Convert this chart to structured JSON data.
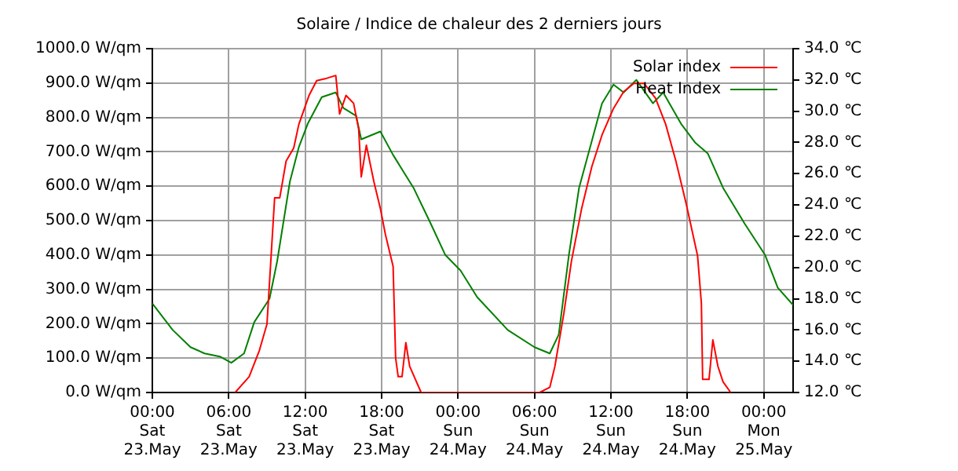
{
  "chart_data": {
    "type": "line",
    "title": "Solaire / Indice de chaleur des 2 derniers jours",
    "xlim": [
      "--05-23T00:00",
      "--05-25T02:18"
    ],
    "xticks": [
      {
        "value": "--05-23T00:00",
        "label": "00:00\nSat\n23.May"
      },
      {
        "value": "--05-23T06:00",
        "label": "06:00\nSat\n23.May"
      },
      {
        "value": "--05-23T12:00",
        "label": "12:00\nSat\n23.May"
      },
      {
        "value": "--05-23T18:00",
        "label": "18:00\nSat\n23.May"
      },
      {
        "value": "--05-24T00:00",
        "label": "00:00\nSun\n24.May"
      },
      {
        "value": "--05-24T06:00",
        "label": "06:00\nSun\n24.May"
      },
      {
        "value": "--05-24T12:00",
        "label": "12:00\nSun\n24.May"
      },
      {
        "value": "--05-24T18:00",
        "label": "18:00\nSun\n24.May"
      },
      {
        "value": "--05-25T00:00",
        "label": "00:00\nMon\n25.May"
      }
    ],
    "ylim": [
      0,
      1000
    ],
    "yticks": [
      {
        "value": 0,
        "label": "0.0 W/qm"
      },
      {
        "value": 100,
        "label": "100.0 W/qm"
      },
      {
        "value": 200,
        "label": "200.0 W/qm"
      },
      {
        "value": 300,
        "label": "300.0 W/qm"
      },
      {
        "value": 400,
        "label": "400.0 W/qm"
      },
      {
        "value": 500,
        "label": "500.0 W/qm"
      },
      {
        "value": 600,
        "label": "600.0 W/qm"
      },
      {
        "value": 700,
        "label": "700.0 W/qm"
      },
      {
        "value": 800,
        "label": "800.0 W/qm"
      },
      {
        "value": 900,
        "label": "900.0 W/qm"
      },
      {
        "value": 1000,
        "label": "1000.0 W/qm"
      }
    ],
    "y2lim": [
      12,
      34
    ],
    "y2ticks": [
      {
        "value": 12,
        "label": "12.0 ℃"
      },
      {
        "value": 14,
        "label": "14.0 ℃"
      },
      {
        "value": 16,
        "label": "16.0 ℃"
      },
      {
        "value": 18,
        "label": "18.0 ℃"
      },
      {
        "value": 20,
        "label": "20.0 ℃"
      },
      {
        "value": 22,
        "label": "22.0 ℃"
      },
      {
        "value": 24,
        "label": "24.0 ℃"
      },
      {
        "value": 26,
        "label": "26.0 ℃"
      },
      {
        "value": 28,
        "label": "28.0 ℃"
      },
      {
        "value": 30,
        "label": "30.0 ℃"
      },
      {
        "value": 32,
        "label": "32.0 ℃"
      },
      {
        "value": 34,
        "label": "34.0 ℃"
      }
    ],
    "grid": true,
    "legend": "top right",
    "marker": "none",
    "line_style": "solid",
    "series": [
      {
        "name": "Solar index",
        "color": "#ff0000",
        "x": [
          "--05-23T06:30",
          "--05-23T07:36",
          "--05-23T08:24",
          "--05-23T09:00",
          "--05-23T09:18",
          "--05-23T09:36",
          "--05-23T10:00",
          "--05-23T10:30",
          "--05-23T11:06",
          "--05-23T11:30",
          "--05-23T12:18",
          "--05-23T12:54",
          "--05-23T13:42",
          "--05-23T14:24",
          "--05-23T14:42",
          "--05-23T15:12",
          "--05-23T15:48",
          "--05-23T16:12",
          "--05-23T16:24",
          "--05-23T16:48",
          "--05-23T17:24",
          "--05-23T17:54",
          "--05-23T18:18",
          "--05-23T18:54",
          "--05-23T19:06",
          "--05-23T19:18",
          "--05-23T19:36",
          "--05-23T19:54",
          "--05-23T20:12",
          "--05-23T21:06",
          "--05-24T06:24",
          "--05-24T07:12",
          "--05-24T07:36",
          "--05-24T08:18",
          "--05-24T08:54",
          "--05-24T09:42",
          "--05-24T10:30",
          "--05-24T11:18",
          "--05-24T12:12",
          "--05-24T13:00",
          "--05-24T13:48",
          "--05-24T14:36",
          "--05-24T15:30",
          "--05-24T16:18",
          "--05-24T17:06",
          "--05-24T17:54",
          "--05-24T18:48",
          "--05-24T19:06",
          "--05-24T19:12",
          "--05-24T19:42",
          "--05-24T20:00",
          "--05-24T20:24",
          "--05-24T20:48",
          "--05-24T21:24"
        ],
        "values": [
          0,
          46,
          122,
          199,
          382,
          566,
          566,
          673,
          711,
          780,
          864,
          907,
          914,
          922,
          810,
          864,
          841,
          765,
          627,
          719,
          612,
          535,
          459,
          367,
          100,
          46,
          46,
          145,
          76,
          0,
          0,
          15,
          76,
          229,
          382,
          535,
          657,
          749,
          826,
          875,
          899,
          899,
          856,
          780,
          673,
          550,
          398,
          260,
          38,
          38,
          153,
          76,
          31,
          0
        ]
      },
      {
        "name": "Heat Index",
        "color": "#008000",
        "axis": "y2",
        "x": [
          "--05-23T00:00",
          "--05-23T01:36",
          "--05-23T03:00",
          "--05-23T04:06",
          "--05-23T05:18",
          "--05-23T06:12",
          "--05-23T07:12",
          "--05-23T08:00",
          "--05-23T09:12",
          "--05-23T09:48",
          "--05-23T10:48",
          "--05-23T11:30",
          "--05-23T12:12",
          "--05-23T13:18",
          "--05-23T14:24",
          "--05-23T15:00",
          "--05-23T16:00",
          "--05-23T16:24",
          "--05-23T17:54",
          "--05-23T18:54",
          "--05-23T20:30",
          "--05-23T21:48",
          "--05-23T23:00",
          "--05-24T00:12",
          "--05-24T01:30",
          "--05-24T03:54",
          "--05-24T06:00",
          "--05-24T07:12",
          "--05-24T07:54",
          "--05-24T08:42",
          "--05-24T09:30",
          "--05-24T10:18",
          "--05-24T11:18",
          "--05-24T12:12",
          "--05-24T13:00",
          "--05-24T14:00",
          "--05-24T15:18",
          "--05-24T16:06",
          "--05-24T17:30",
          "--05-24T18:36",
          "--05-24T19:36",
          "--05-24T20:48",
          "--05-24T22:30",
          "--05-25T00:06",
          "--05-25T01:06",
          "--05-25T02:18"
        ],
        "values": [
          17.7,
          16.0,
          14.9,
          14.5,
          14.3,
          13.9,
          14.5,
          16.5,
          18.0,
          20.4,
          25.5,
          27.7,
          29.2,
          30.9,
          31.2,
          30.2,
          29.7,
          28.2,
          28.7,
          27.2,
          25.1,
          22.9,
          20.8,
          19.8,
          18.1,
          16.0,
          14.9,
          14.5,
          15.7,
          20.8,
          25.1,
          27.5,
          30.5,
          31.7,
          31.2,
          32.0,
          30.5,
          31.2,
          29.2,
          28.0,
          27.3,
          25.1,
          22.8,
          20.8,
          18.7,
          17.6
        ]
      }
    ]
  }
}
